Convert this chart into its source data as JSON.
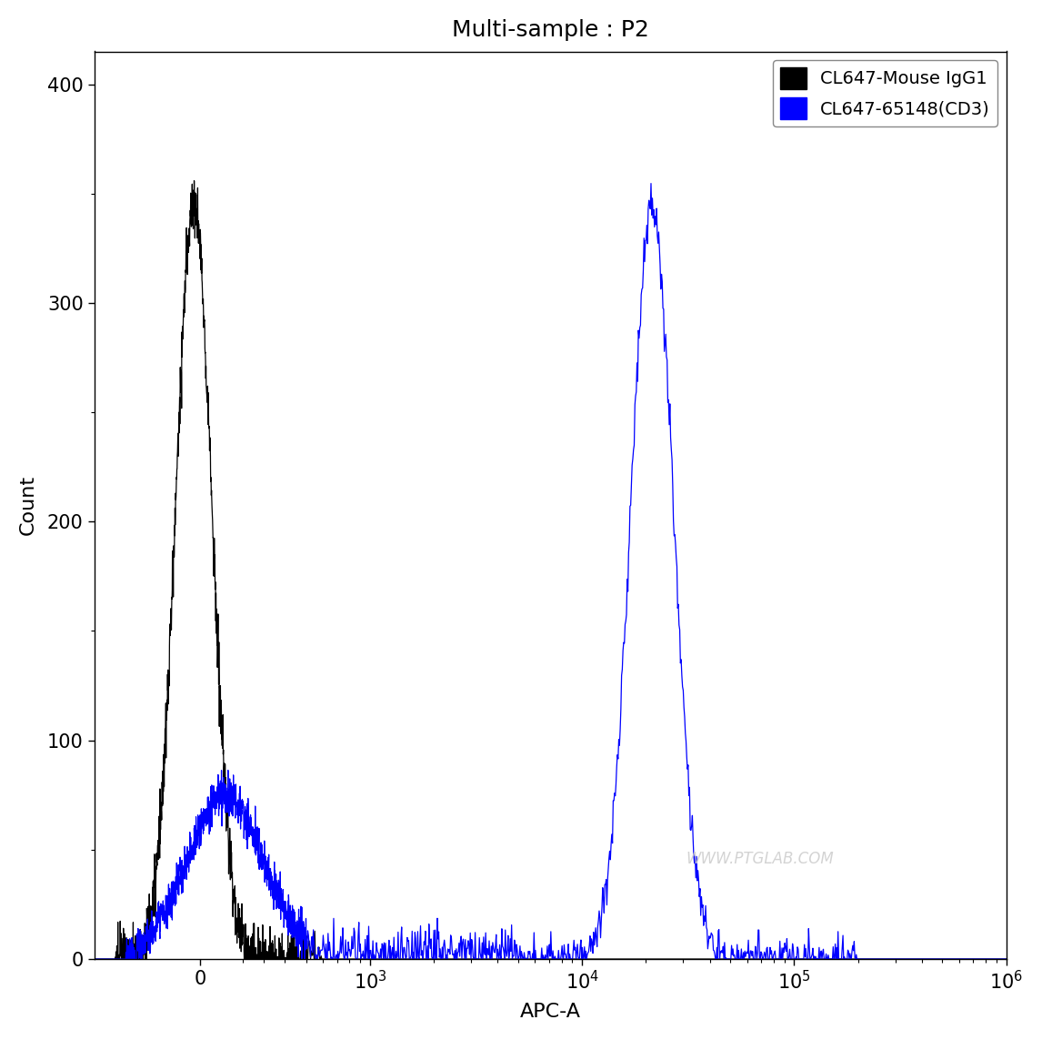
{
  "title": "Multi-sample : P2",
  "xlabel": "APC-A",
  "ylabel": "Count",
  "ylim": [
    0,
    415
  ],
  "yticks": [
    0,
    100,
    200,
    300,
    400
  ],
  "legend_labels": [
    "CL647-Mouse IgG1",
    "CL647-65148(CD3)"
  ],
  "legend_colors": [
    "#000000",
    "#0000FF"
  ],
  "watermark": "WWW.PTGLAB.COM",
  "background_color": "#ffffff",
  "figsize": [
    11.46,
    11.43
  ],
  "dpi": 100
}
